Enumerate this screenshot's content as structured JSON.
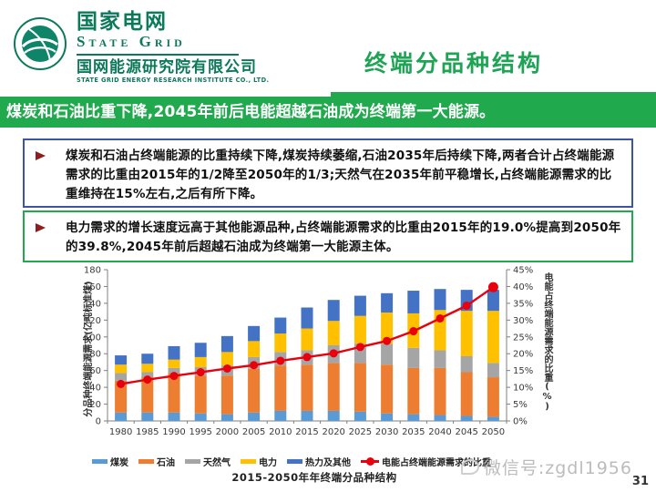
{
  "header": {
    "logo": {
      "brand_cn": "国家电网",
      "brand_en": "State Grid",
      "org_cn": "国网能源研究院有限公司",
      "org_en": "STATE GRID ENERGY RESEARCH INSTITUTE CO., LTD."
    },
    "title": "终端分品种结构"
  },
  "banner": {
    "text": "煤炭和石油比重下降,2045年前后电能超越石油成为终端第一大能源。"
  },
  "bullets": [
    {
      "text": "煤炭和石油占终端能源的比重持续下降,煤炭持续萎缩,石油2035年后持续下降,两者合计占终端能源需求的比重由2015年的1/2降至2050年的1/3;天然气在2035年前平稳增长,占终端能源需求的比重维持在15%左右,之后有所下降。"
    },
    {
      "text": "电力需求的增长速度远高于其他能源品种,占终端能源需求的比重由2015年的19.0%提高到2050年的39.8%,2045年前后超越石油成为终端第一大能源主体。"
    }
  ],
  "chart_data": {
    "type": "bar",
    "stacked": true,
    "grid": false,
    "legend_position": "bottom",
    "categories": [
      1980,
      1985,
      1990,
      1995,
      2000,
      2005,
      2010,
      2015,
      2020,
      2025,
      2030,
      2035,
      2040,
      2045,
      2050
    ],
    "series": [
      {
        "name": "煤炭",
        "type": "bar",
        "color": "#5B9BD5",
        "values": [
          10,
          10,
          10,
          9,
          8,
          10,
          12,
          12,
          12,
          11,
          9,
          8,
          7,
          6,
          5
        ]
      },
      {
        "name": "石油",
        "type": "bar",
        "color": "#ED7D31",
        "values": [
          38,
          42,
          47,
          45,
          46,
          52,
          54,
          55,
          57,
          58,
          58,
          55,
          56,
          52,
          47
        ]
      },
      {
        "name": "天然气",
        "type": "bar",
        "color": "#A5A5A5",
        "values": [
          9,
          6,
          6,
          10,
          12,
          14,
          16,
          17,
          21,
          23,
          25,
          24,
          21,
          19,
          17
        ]
      },
      {
        "name": "电力",
        "type": "bar",
        "color": "#FFC000",
        "values": [
          10,
          10,
          10,
          12,
          16,
          19,
          22,
          26,
          29,
          33,
          37,
          41,
          48,
          54,
          62
        ]
      },
      {
        "name": "热力及其他",
        "type": "bar",
        "color": "#4472C4",
        "values": [
          11,
          12,
          16,
          17,
          19,
          18,
          19,
          25,
          25,
          24,
          23,
          27,
          25,
          25,
          25
        ]
      },
      {
        "name": "电能占终端能源需求的比重",
        "type": "line",
        "axis": "right",
        "color": "#E8000D",
        "values": [
          11.0,
          12.3,
          13.4,
          14.5,
          15.6,
          16.6,
          17.9,
          19.0,
          20.1,
          22.0,
          23.8,
          26.7,
          30.5,
          34.3,
          39.8
        ]
      }
    ],
    "left_axis": {
      "min": 0,
      "max": 180,
      "step": 20,
      "title": "分品种终端能源需求(亿吨标准煤)"
    },
    "right_axis": {
      "min": 0,
      "max": 45,
      "step": 5,
      "unit": "%",
      "title": "电能占终端能源需求的比重(%)"
    },
    "caption": "2015-2050年年终端分品种结构"
  },
  "footer": {
    "watermark": "微信号:zgdl1956",
    "page_number": "31"
  },
  "colors": {
    "brand_green": "#0c7a5a",
    "title_green": "#1fa455",
    "banner_green": "#21a94e",
    "box1_border": "#3b55a0",
    "box2_border": "#21a94e",
    "bullet_arrow": "#8f1d1d",
    "line_red": "#E8000D"
  }
}
